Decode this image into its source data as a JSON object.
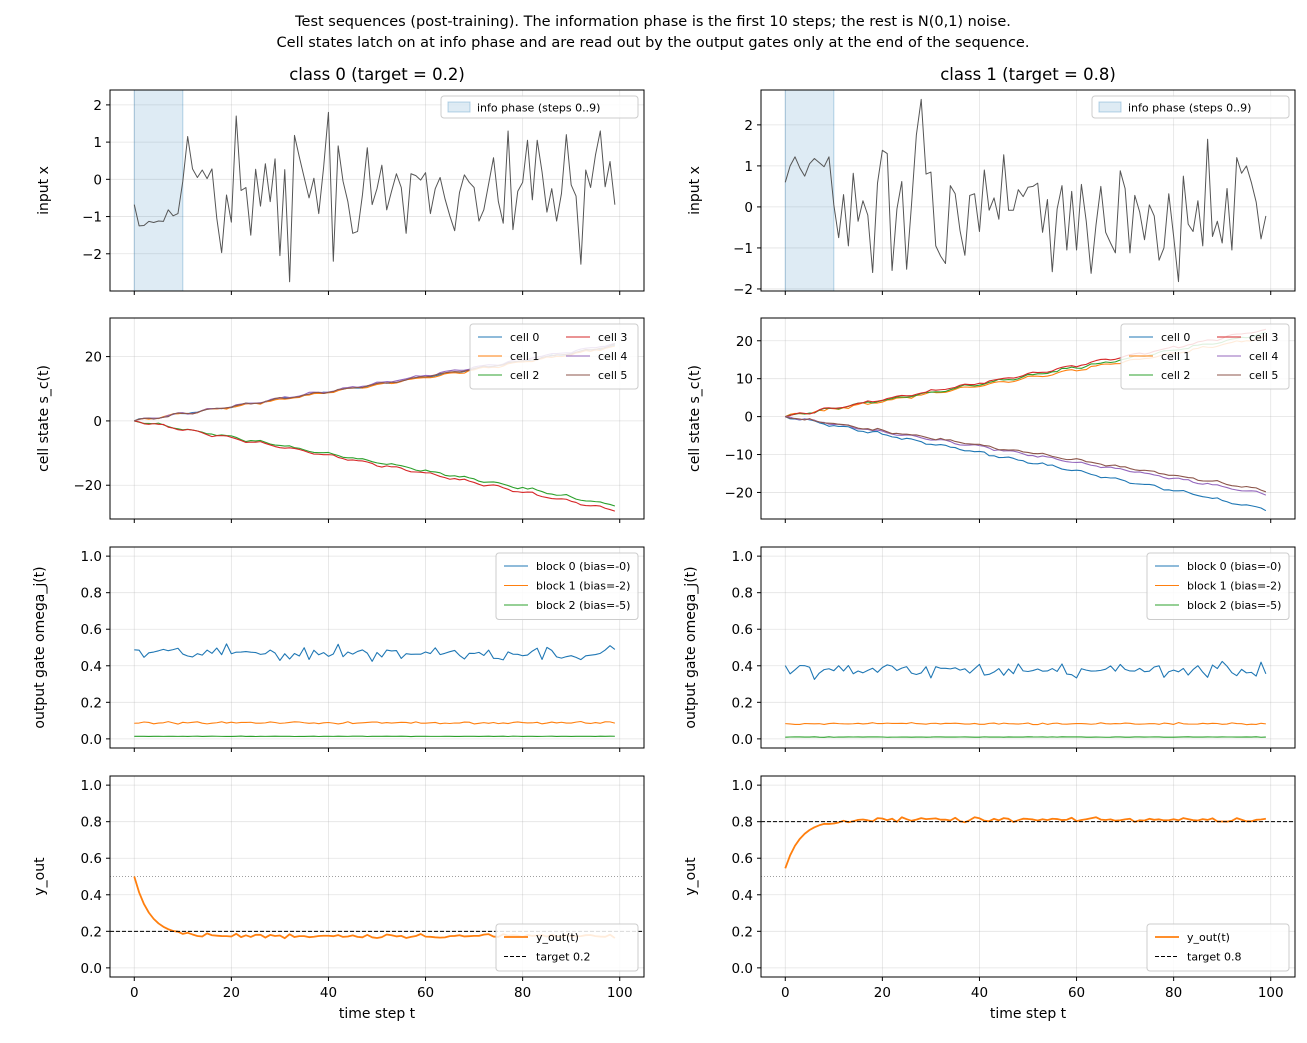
{
  "figure": {
    "suptitle_line1": "Test sequences (post-training).  The information phase is the first 10 steps; the rest is N(0,1) noise.",
    "suptitle_line2": "Cell states latch on at info phase and are read out by the output gates only at the end of the sequence.",
    "xlabel": "time step t"
  },
  "chart_data": [
    {
      "type": "line",
      "column": "class 0",
      "title": "class 0  (target = 0.2)",
      "ylabel": "input x",
      "xlim": [
        -5,
        105
      ],
      "ylim": [
        -3,
        2.4
      ],
      "yticks": [
        -2,
        -1,
        0,
        1,
        2
      ],
      "xticks": [
        0,
        20,
        40,
        60,
        80,
        100
      ],
      "info_phase": {
        "from": 0,
        "to": 10,
        "label": "info phase (steps 0..9)"
      },
      "series": [
        {
          "name": "input x",
          "color": "#555555",
          "values": [
            -0.68,
            -1.25,
            -1.24,
            -1.13,
            -1.16,
            -1.12,
            -1.13,
            -0.82,
            -0.98,
            -0.92,
            -0.05,
            1.15,
            0.28,
            0.05,
            0.25,
            0.02,
            0.28,
            -1.05,
            -1.97,
            -0.42,
            -1.15,
            1.7,
            -0.3,
            -0.22,
            -1.5,
            0.27,
            -0.72,
            0.42,
            -0.6,
            0.55,
            -2.05,
            0.26,
            -2.75,
            1.18,
            0.6,
            0.05,
            -0.5,
            0.03,
            -0.92,
            0.32,
            1.8,
            -2.2,
            0.9,
            -0.05,
            -0.6,
            -1.45,
            -1.4,
            -0.42,
            0.85,
            -0.68,
            -0.25,
            0.38,
            -0.82,
            -0.32,
            0.15,
            -0.22,
            -1.45,
            0.15,
            0.1,
            -0.02,
            0.18,
            -0.92,
            -0.25,
            0.05,
            -0.52,
            -0.98,
            -1.38,
            -0.35,
            0.12,
            -0.08,
            -0.22,
            -1.12,
            -0.82,
            -0.12,
            0.58,
            -0.6,
            -1.18,
            1.3,
            -1.35,
            -0.32,
            -0.08,
            1.05,
            -0.55,
            1.05,
            0.2,
            -0.88,
            -0.25,
            -1.12,
            -0.38,
            1.2,
            -0.15,
            -0.45,
            -2.28,
            0.25,
            -0.22,
            0.65,
            1.3,
            -0.2,
            0.48,
            -0.68
          ]
        }
      ]
    },
    {
      "type": "line",
      "column": "class 1",
      "title": "class 1  (target = 0.8)",
      "ylabel": "input x",
      "xlim": [
        -5,
        105
      ],
      "ylim": [
        -2.05,
        2.85
      ],
      "yticks": [
        -2,
        -1,
        0,
        1,
        2
      ],
      "xticks": [
        0,
        20,
        40,
        60,
        80,
        100
      ],
      "info_phase": {
        "from": 0,
        "to": 10,
        "label": "info phase (steps 0..9)"
      },
      "series": [
        {
          "name": "input x",
          "color": "#555555",
          "values": [
            0.6,
            1.0,
            1.22,
            0.95,
            0.75,
            1.05,
            1.18,
            1.08,
            0.98,
            1.22,
            0.05,
            -0.75,
            0.3,
            -0.95,
            0.82,
            -0.35,
            0.15,
            -0.2,
            -1.6,
            0.58,
            1.38,
            1.3,
            -1.55,
            -0.05,
            0.62,
            -1.52,
            0.05,
            1.75,
            2.62,
            0.8,
            0.85,
            -0.95,
            -1.2,
            -1.38,
            0.52,
            0.32,
            -0.58,
            -1.18,
            0.28,
            0.32,
            -0.6,
            0.9,
            -0.08,
            0.22,
            -0.3,
            1.27,
            -0.08,
            -0.08,
            0.42,
            0.25,
            0.48,
            0.5,
            0.58,
            -0.62,
            0.18,
            -1.58,
            -0.05,
            0.52,
            -1.05,
            0.38,
            -1.05,
            0.55,
            -0.35,
            -1.62,
            -0.45,
            0.5,
            -0.62,
            -0.88,
            -1.12,
            0.88,
            0.45,
            -1.12,
            0.28,
            -0.12,
            -0.8,
            0.05,
            -0.22,
            -1.3,
            -1.0,
            0.32,
            -0.72,
            -1.82,
            0.75,
            -0.42,
            -0.6,
            0.15,
            -0.95,
            1.65,
            -0.72,
            -0.35,
            -0.88,
            0.45,
            -1.05,
            1.2,
            0.82,
            1.0,
            0.6,
            0.12,
            -0.78,
            -0.22
          ]
        }
      ]
    },
    {
      "type": "line",
      "column": "class 0",
      "ylabel": "cell state s_c(t)",
      "xlim": [
        -5,
        105
      ],
      "ylim": [
        -30.5,
        32
      ],
      "yticks": [
        -20,
        0,
        20
      ],
      "xticks": [
        0,
        20,
        40,
        60,
        80,
        100
      ],
      "legend": {
        "position": "top-right",
        "ncol": 2
      },
      "series": [
        {
          "name": "cell 0",
          "color": "#1f77b4",
          "end": 23.3
        },
        {
          "name": "cell 1",
          "color": "#ff7f0e",
          "end": 23.0
        },
        {
          "name": "cell 2",
          "color": "#2ca02c",
          "end": -26.3
        },
        {
          "name": "cell 3",
          "color": "#d62728",
          "end": -27.8
        },
        {
          "name": "cell 4",
          "color": "#9467bd",
          "end": 24.0
        },
        {
          "name": "cell 5",
          "color": "#8c564b",
          "end": 23.5
        }
      ]
    },
    {
      "type": "line",
      "column": "class 1",
      "ylabel": "cell state s_c(t)",
      "xlim": [
        -5,
        105
      ],
      "ylim": [
        -27,
        26
      ],
      "yticks": [
        -20,
        -10,
        0,
        10,
        20
      ],
      "xticks": [
        0,
        20,
        40,
        60,
        80,
        100
      ],
      "legend": {
        "position": "top-right",
        "ncol": 2
      },
      "series": [
        {
          "name": "cell 0",
          "color": "#1f77b4",
          "end": -24.5
        },
        {
          "name": "cell 1",
          "color": "#ff7f0e",
          "end": 21.0
        },
        {
          "name": "cell 2",
          "color": "#2ca02c",
          "end": 22.0
        },
        {
          "name": "cell 3",
          "color": "#d62728",
          "end": 23.0
        },
        {
          "name": "cell 4",
          "color": "#9467bd",
          "end": -20.5
        },
        {
          "name": "cell 5",
          "color": "#8c564b",
          "end": -19.5
        }
      ]
    },
    {
      "type": "line",
      "column": "class 0",
      "ylabel": "output gate omega_j(t)",
      "xlim": [
        -5,
        105
      ],
      "ylim": [
        -0.05,
        1.05
      ],
      "yticks": [
        0.0,
        0.2,
        0.4,
        0.6,
        0.8,
        1.0
      ],
      "xticks": [
        0,
        20,
        40,
        60,
        80,
        100
      ],
      "legend": {
        "position": "top-right",
        "ncol": 1
      },
      "series": [
        {
          "name": "block 0 (bias=-0)",
          "color": "#1f77b4",
          "mean": 0.47
        },
        {
          "name": "block 1 (bias=-2)",
          "color": "#ff7f0e",
          "mean": 0.088
        },
        {
          "name": "block 2 (bias=-5)",
          "color": "#2ca02c",
          "mean": 0.014
        }
      ]
    },
    {
      "type": "line",
      "column": "class 1",
      "ylabel": "output gate omega_j(t)",
      "xlim": [
        -5,
        105
      ],
      "ylim": [
        -0.05,
        1.05
      ],
      "yticks": [
        0.0,
        0.2,
        0.4,
        0.6,
        0.8,
        1.0
      ],
      "xticks": [
        0,
        20,
        40,
        60,
        80,
        100
      ],
      "legend": {
        "position": "top-right",
        "ncol": 1
      },
      "series": [
        {
          "name": "block 0 (bias=-0)",
          "color": "#1f77b4",
          "mean": 0.375
        },
        {
          "name": "block 1 (bias=-2)",
          "color": "#ff7f0e",
          "mean": 0.083
        },
        {
          "name": "block 2 (bias=-5)",
          "color": "#2ca02c",
          "mean": 0.01
        }
      ]
    },
    {
      "type": "line",
      "column": "class 0",
      "ylabel": "y_out",
      "xlim": [
        -5,
        105
      ],
      "ylim": [
        -0.05,
        1.05
      ],
      "yticks": [
        0.0,
        0.2,
        0.4,
        0.6,
        0.8,
        1.0
      ],
      "xticks": [
        0,
        20,
        40,
        60,
        80,
        100
      ],
      "target": 0.2,
      "threshold": 0.5,
      "legend": {
        "position": "bottom-right",
        "ncol": 1
      },
      "series": [
        {
          "name": "y_out(t)",
          "color": "#ff7f0e",
          "start": 0.5,
          "settle": 0.175
        },
        {
          "name": "target 0.2",
          "color": "#000000",
          "value": 0.2
        }
      ]
    },
    {
      "type": "line",
      "column": "class 1",
      "ylabel": "y_out",
      "xlim": [
        -5,
        105
      ],
      "ylim": [
        -0.05,
        1.05
      ],
      "yticks": [
        0.0,
        0.2,
        0.4,
        0.6,
        0.8,
        1.0
      ],
      "xticks": [
        0,
        20,
        40,
        60,
        80,
        100
      ],
      "target": 0.8,
      "threshold": 0.5,
      "legend": {
        "position": "bottom-right",
        "ncol": 1
      },
      "series": [
        {
          "name": "y_out(t)",
          "color": "#ff7f0e",
          "start": 0.545,
          "settle": 0.81
        },
        {
          "name": "target 0.8",
          "color": "#000000",
          "value": 0.8
        }
      ]
    }
  ]
}
